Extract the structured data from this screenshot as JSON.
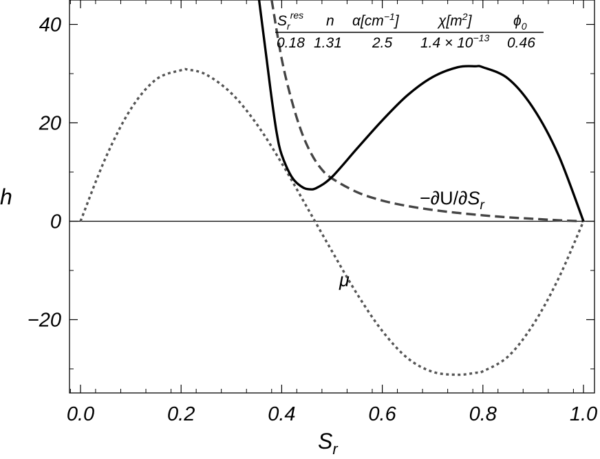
{
  "chart_data": {
    "type": "line",
    "xlabel": "S",
    "xlabel_sub": "r",
    "ylabel": "h",
    "xlim": [
      0.0,
      1.02
    ],
    "ylim": [
      -34,
      45
    ],
    "x_ticks": [
      "0.0",
      "0.2",
      "0.4",
      "0.6",
      "0.8",
      "1.0"
    ],
    "x_tick_values": [
      0.0,
      0.2,
      0.4,
      0.6,
      0.8,
      1.0
    ],
    "y_ticks": [
      "40",
      "20",
      "0",
      "−20"
    ],
    "y_tick_values": [
      40,
      20,
      0,
      -20
    ],
    "grid": false,
    "zero_line": true,
    "series": [
      {
        "label_parts": [
          "−∂U/∂",
          "S",
          "r"
        ],
        "style": "dashed",
        "color": "#444444",
        "x": [
          0.38,
          0.4,
          0.42,
          0.44,
          0.46,
          0.48,
          0.5,
          0.55,
          0.6,
          0.65,
          0.7,
          0.75,
          0.8,
          0.85,
          0.9,
          0.95,
          1.0
        ],
        "y": [
          45,
          33,
          24.5,
          18,
          13.5,
          10.5,
          8.7,
          5.9,
          4.2,
          3.1,
          2.3,
          1.7,
          1.2,
          0.8,
          0.5,
          0.2,
          0.0
        ]
      },
      {
        "label_parts": [
          "μ"
        ],
        "style": "dotted",
        "color": "#555555",
        "x": [
          0.0,
          0.05,
          0.1,
          0.15,
          0.2,
          0.214,
          0.25,
          0.3,
          0.35,
          0.4,
          0.45,
          0.5,
          0.55,
          0.6,
          0.65,
          0.7,
          0.75,
          0.786,
          0.8,
          0.85,
          0.9,
          0.95,
          1.0
        ],
        "y": [
          0.0,
          12.9,
          22.8,
          28.8,
          30.7,
          30.8,
          29.8,
          26.0,
          19.8,
          11.8,
          2.9,
          -6.1,
          -14.8,
          -22.3,
          -27.8,
          -30.6,
          -31.2,
          -30.8,
          -30.5,
          -27.5,
          -21.0,
          -11.7,
          0.0
        ]
      },
      {
        "label_parts": [],
        "style": "solid",
        "color": "#000000",
        "x": [
          0.355,
          0.37,
          0.38,
          0.39,
          0.4,
          0.42,
          0.44,
          0.455,
          0.47,
          0.5,
          0.55,
          0.6,
          0.65,
          0.7,
          0.75,
          0.785,
          0.8,
          0.85,
          0.9,
          0.95,
          1.0
        ],
        "y": [
          45,
          33,
          25,
          18,
          13.5,
          9.0,
          7.0,
          6.5,
          6.8,
          9.0,
          14.8,
          20.5,
          25.6,
          29.3,
          31.3,
          31.5,
          31.3,
          29.0,
          23.0,
          13.5,
          0.0
        ]
      }
    ],
    "parameter_table": {
      "headers": [
        {
          "main": "S",
          "sub": "r",
          "sup": "res"
        },
        {
          "main": "n"
        },
        {
          "main": "α[cm",
          "sup": "−1",
          "tail": "]"
        },
        {
          "main": "χ[m",
          "sup": "2",
          "tail": "]"
        },
        {
          "main": "ϕ",
          "sub": "0"
        }
      ],
      "values": [
        {
          "main": "0.18"
        },
        {
          "main": "1.31"
        },
        {
          "main": "2.5"
        },
        {
          "main": "1.4 × 10",
          "sup": "−13"
        },
        {
          "main": "0.46"
        }
      ]
    }
  }
}
